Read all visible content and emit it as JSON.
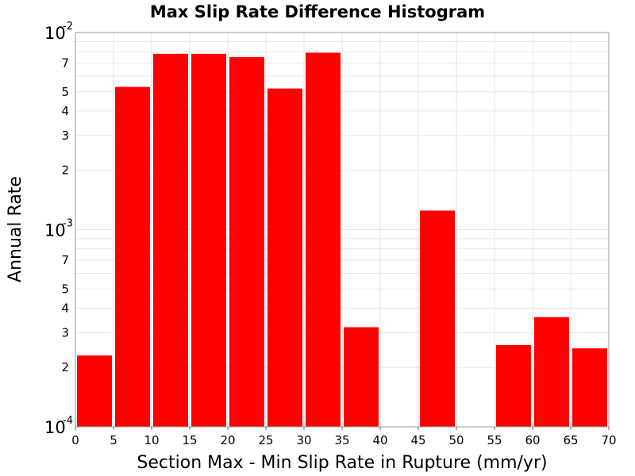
{
  "chart_data": {
    "type": "bar",
    "title": "Max Slip Rate Difference Histogram",
    "xlabel": "Section Max - Min Slip Rate in Rupture (mm/yr)",
    "ylabel": "Annual Rate",
    "xlim": [
      0,
      70
    ],
    "ylim": [
      0.0001,
      0.01
    ],
    "yscale": "log",
    "bar_color": "#ff0000",
    "grid": true,
    "x_ticks": [
      "0",
      "5",
      "10",
      "15",
      "20",
      "25",
      "30",
      "35",
      "40",
      "45",
      "50",
      "55",
      "60",
      "65",
      "70"
    ],
    "y_major_ticks": [
      {
        "value": 0.01,
        "base": "10",
        "exp": "-2"
      },
      {
        "value": 0.001,
        "base": "10",
        "exp": "-3"
      },
      {
        "value": 0.0001,
        "base": "10",
        "exp": "-4"
      }
    ],
    "y_minor_ticks": [
      {
        "value": 0.007,
        "label": "7"
      },
      {
        "value": 0.005,
        "label": "5"
      },
      {
        "value": 0.004,
        "label": "4"
      },
      {
        "value": 0.003,
        "label": "3"
      },
      {
        "value": 0.002,
        "label": "2"
      },
      {
        "value": 0.0007,
        "label": "7"
      },
      {
        "value": 0.0005,
        "label": "5"
      },
      {
        "value": 0.0004,
        "label": "4"
      },
      {
        "value": 0.0003,
        "label": "3"
      },
      {
        "value": 0.0002,
        "label": "2"
      }
    ],
    "bins": [
      {
        "x0": 0,
        "x1": 5,
        "value": 0.00023
      },
      {
        "x0": 5,
        "x1": 10,
        "value": 0.0053
      },
      {
        "x0": 10,
        "x1": 15,
        "value": 0.0078
      },
      {
        "x0": 15,
        "x1": 20,
        "value": 0.0078
      },
      {
        "x0": 20,
        "x1": 25,
        "value": 0.0075
      },
      {
        "x0": 25,
        "x1": 30,
        "value": 0.0052
      },
      {
        "x0": 30,
        "x1": 35,
        "value": 0.0079
      },
      {
        "x0": 35,
        "x1": 40,
        "value": 0.00032
      },
      {
        "x0": 45,
        "x1": 50,
        "value": 0.00125
      },
      {
        "x0": 55,
        "x1": 60,
        "value": 0.00026
      },
      {
        "x0": 60,
        "x1": 65,
        "value": 0.00036
      },
      {
        "x0": 65,
        "x1": 70,
        "value": 0.00025
      }
    ]
  }
}
